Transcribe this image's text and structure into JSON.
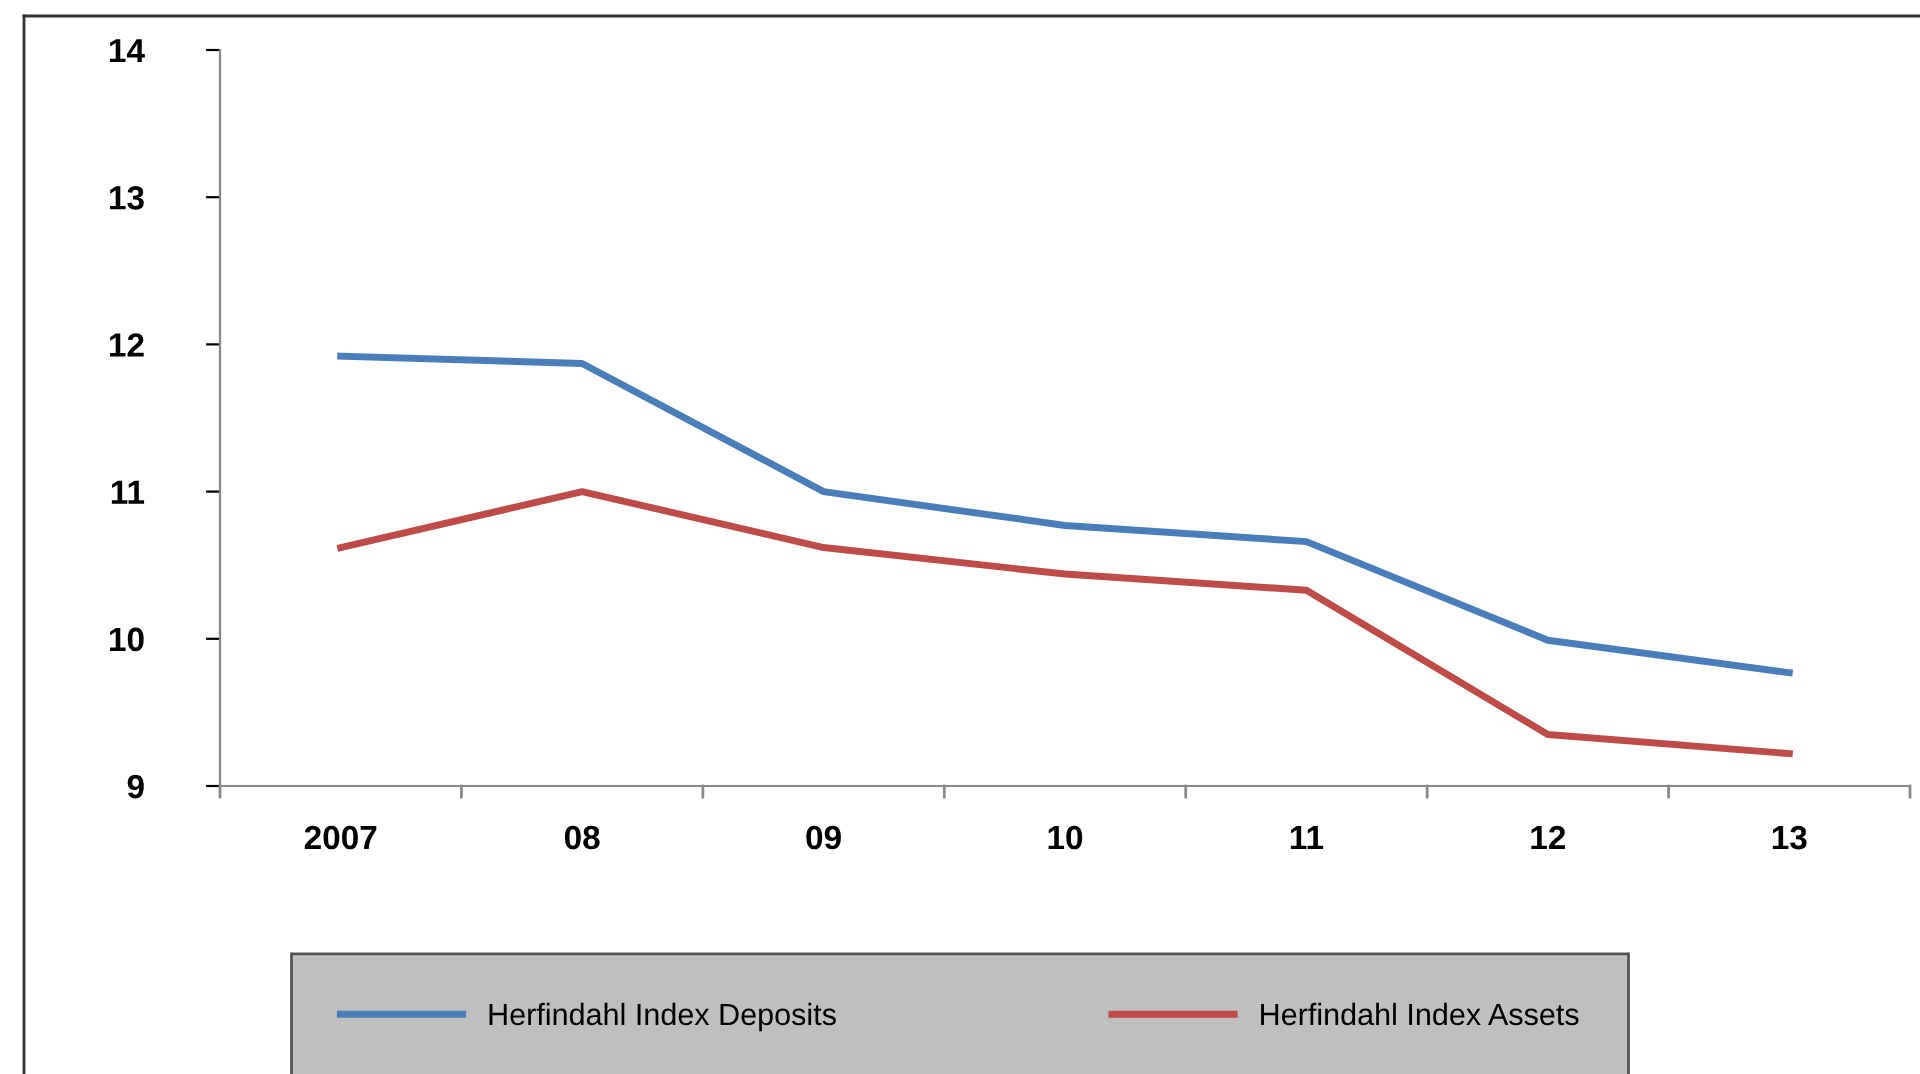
{
  "chart_data": {
    "type": "line",
    "categories": [
      "2007",
      "08",
      "09",
      "10",
      "11",
      "12",
      "13"
    ],
    "series": [
      {
        "name": "Herfindahl Index Deposits",
        "color": "#4a7ebb",
        "values": [
          11.92,
          11.87,
          11.0,
          10.77,
          10.66,
          9.99,
          9.77
        ]
      },
      {
        "name": "Herfindahl Index Assets",
        "color": "#be4b48",
        "values": [
          10.62,
          11.0,
          10.62,
          10.44,
          10.33,
          9.35,
          9.22
        ]
      }
    ],
    "ylim": [
      9,
      14
    ],
    "yticks": [
      9,
      10,
      11,
      12,
      13,
      14
    ],
    "grid": false,
    "legend": "bottom",
    "marker": "none",
    "line_style": "solid"
  }
}
